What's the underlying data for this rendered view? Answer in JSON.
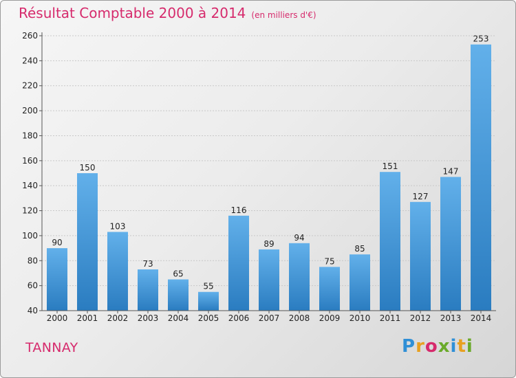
{
  "header": {
    "title": "Résultat Comptable 2000 à 2014",
    "subtitle": "(en milliers d'€)"
  },
  "footer": {
    "town": "TANNAY",
    "logo": {
      "letters": [
        "P",
        "r",
        "o",
        "x",
        "i",
        "t",
        "i"
      ],
      "colors": [
        "#2f8fd6",
        "#e8a020",
        "#d62a6c",
        "#6aaa2a",
        "#2f8fd6",
        "#e8a020",
        "#6aaa2a"
      ]
    }
  },
  "chart_data": {
    "type": "bar",
    "categories": [
      "2000",
      "2001",
      "2002",
      "2003",
      "2004",
      "2005",
      "2006",
      "2007",
      "2008",
      "2009",
      "2010",
      "2011",
      "2012",
      "2013",
      "2014"
    ],
    "values": [
      90,
      150,
      103,
      73,
      65,
      55,
      116,
      89,
      94,
      75,
      85,
      151,
      127,
      147,
      253
    ],
    "title": "Résultat Comptable 2000 à 2014",
    "ylim": [
      40,
      260
    ],
    "yticks": [
      40,
      60,
      80,
      100,
      120,
      140,
      160,
      180,
      200,
      220,
      240,
      260
    ],
    "grid": true,
    "bar_color_top": "#62b0ea",
    "bar_color_bottom": "#2a7cc0",
    "grid_color": "#c8c8c8",
    "axis_color": "#555555"
  }
}
